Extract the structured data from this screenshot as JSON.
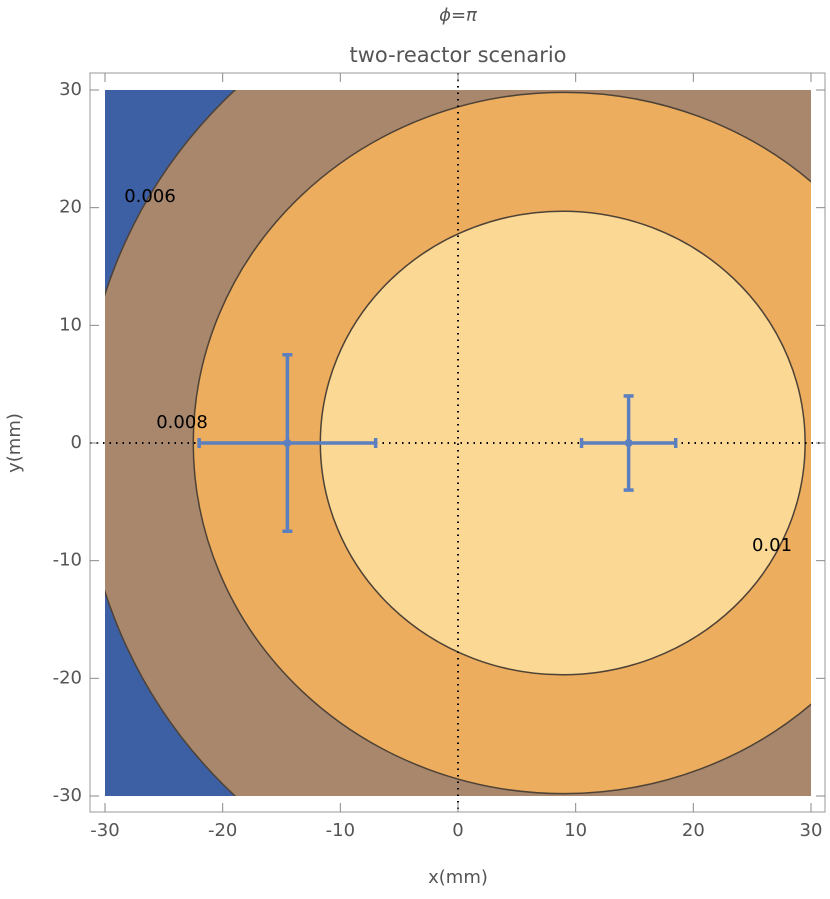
{
  "chart_data": {
    "type": "contour",
    "title": "ϕ=π",
    "subtitle": "two-reactor scenario",
    "x_label": "x(mm)",
    "y_label": "y(mm)",
    "xlim": [
      -30,
      30
    ],
    "ylim": [
      -30,
      30
    ],
    "xticks": [
      -30,
      -20,
      -10,
      0,
      10,
      20,
      30
    ],
    "yticks": [
      -30,
      -20,
      -10,
      0,
      10,
      20,
      30
    ],
    "background": "#3d5fa3",
    "line_color": "#4e4236",
    "contours": [
      {
        "level": 0.006,
        "cx": 9,
        "cy": 0,
        "rx": 41,
        "ry": 41,
        "fill": "#a8876d"
      },
      {
        "level": 0.008,
        "cx": 9,
        "cy": 0,
        "rx": 31.5,
        "ry": 29.8,
        "fill": "#ecad5e"
      },
      {
        "level": 0.01,
        "cx": 8.9,
        "cy": 0,
        "rx": 20.6,
        "ry": 19.7,
        "fill": "#fbd995"
      }
    ],
    "points": {
      "color": "#5b7fbf",
      "x": [
        -14.5,
        14.5
      ],
      "y": [
        0,
        0
      ],
      "xerr": [
        7.5,
        4
      ],
      "yerr": [
        7.5,
        4
      ]
    }
  }
}
